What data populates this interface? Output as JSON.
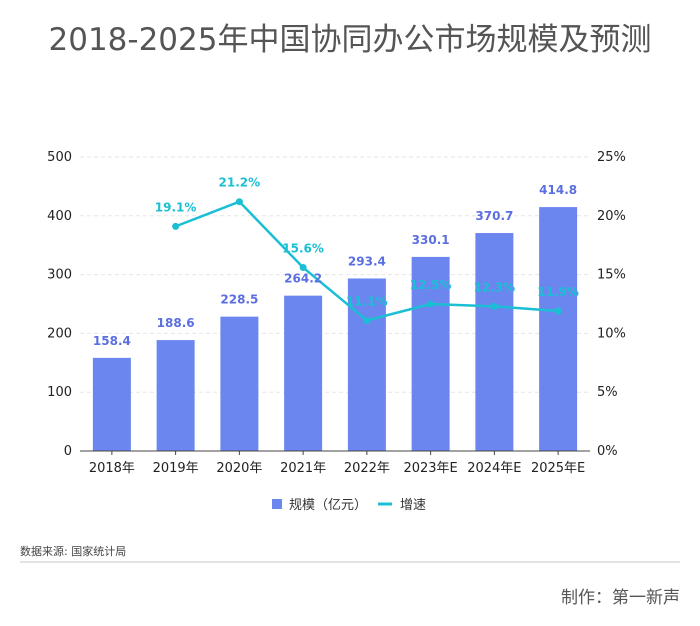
{
  "title": "2018-2025年中国协同办公市场规模及预测",
  "source": "数据来源: 国家统计局",
  "credit": "制作：第一新声",
  "colors": {
    "bar": "#6b86ee",
    "line": "#1bbfd4",
    "bar_label": "#5b6fe0",
    "grid": "#e6e6e6"
  },
  "chart_data": {
    "type": "bar",
    "title": "2018-2025年中国协同办公市场规模及预测",
    "categories": [
      "2018年",
      "2019年",
      "2020年",
      "2021年",
      "2022年",
      "2023年E",
      "2024年E",
      "2025年E"
    ],
    "series": [
      {
        "name": "规模（亿元）",
        "type": "bar",
        "axis": "left",
        "values": [
          158.4,
          188.6,
          228.5,
          264.2,
          293.4,
          330.1,
          370.7,
          414.8
        ],
        "labels": [
          "158.4",
          "188.6",
          "228.5",
          "264.2",
          "293.4",
          "330.1",
          "370.7",
          "414.8"
        ]
      },
      {
        "name": "增速",
        "type": "line",
        "axis": "right",
        "values": [
          null,
          19.1,
          21.2,
          15.6,
          11.1,
          12.5,
          12.3,
          11.9
        ],
        "labels": [
          "",
          "19.1%",
          "21.2%",
          "15.6%",
          "11.1%",
          "12.5%",
          "12.3%",
          "11.9%"
        ]
      }
    ],
    "ylim_left": [
      0,
      500
    ],
    "ylim_right": [
      0,
      25
    ],
    "yticks_left": [
      "0",
      "100",
      "200",
      "300",
      "400",
      "500"
    ],
    "yticks_right": [
      "0%",
      "5%",
      "10%",
      "15%",
      "20%",
      "25%"
    ],
    "grid": true,
    "legend": "bottom"
  }
}
